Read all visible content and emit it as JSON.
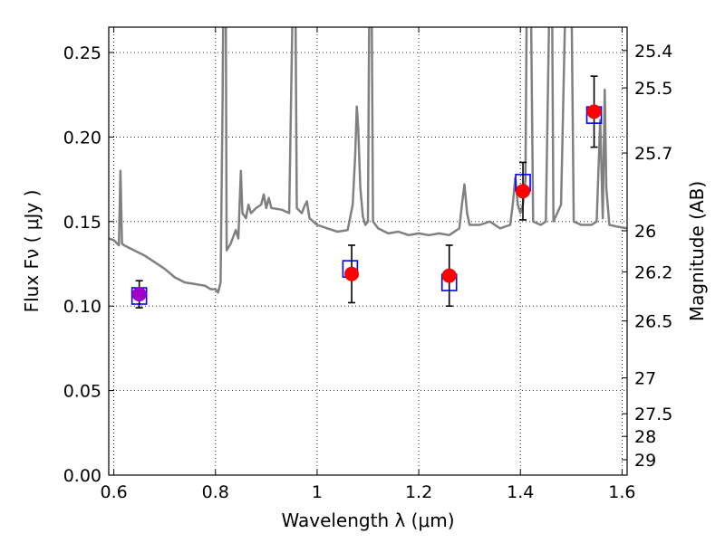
{
  "chart_data": {
    "type": "scatter",
    "title": "",
    "xlabel": "Wavelength  λ (μm)",
    "ylabel_left": "Flux  Fν  ( μJy )",
    "ylabel_right": "Magnitude (AB)",
    "xlim": [
      0.59,
      1.61
    ],
    "ylim": [
      0,
      0.265
    ],
    "grid": true,
    "x_ticks": [
      {
        "value": 0.6,
        "label": "0.6"
      },
      {
        "value": 0.8,
        "label": "0.8"
      },
      {
        "value": 1.0,
        "label": "1"
      },
      {
        "value": 1.2,
        "label": "1.2"
      },
      {
        "value": 1.4,
        "label": "1.4"
      },
      {
        "value": 1.6,
        "label": "1.6"
      }
    ],
    "y_ticks": [
      {
        "value": 0.0,
        "label": "0.00"
      },
      {
        "value": 0.05,
        "label": "0.05"
      },
      {
        "value": 0.1,
        "label": "0.10"
      },
      {
        "value": 0.15,
        "label": "0.15"
      },
      {
        "value": 0.2,
        "label": "0.20"
      },
      {
        "value": 0.25,
        "label": "0.25"
      }
    ],
    "mag_ticks": [
      {
        "mag": 25.4,
        "label": "25.4"
      },
      {
        "mag": 25.5,
        "label": "25.5"
      },
      {
        "mag": 25.7,
        "label": "25.7"
      },
      {
        "mag": 26.0,
        "label": "26"
      },
      {
        "mag": 26.2,
        "label": "26.2"
      },
      {
        "mag": 26.5,
        "label": "26.5"
      },
      {
        "mag": 27.0,
        "label": "27"
      },
      {
        "mag": 27.5,
        "label": "27.5"
      },
      {
        "mag": 28.0,
        "label": "28"
      },
      {
        "mag": 29.0,
        "label": "29"
      }
    ],
    "spectrum": {
      "color": "#808080",
      "points": [
        [
          0.59,
          0.14
        ],
        [
          0.6,
          0.139
        ],
        [
          0.61,
          0.136
        ],
        [
          0.613,
          0.18
        ],
        [
          0.616,
          0.137
        ],
        [
          0.62,
          0.136
        ],
        [
          0.64,
          0.133
        ],
        [
          0.66,
          0.13
        ],
        [
          0.68,
          0.126
        ],
        [
          0.7,
          0.122
        ],
        [
          0.72,
          0.117
        ],
        [
          0.74,
          0.114
        ],
        [
          0.76,
          0.113
        ],
        [
          0.78,
          0.112
        ],
        [
          0.79,
          0.11
        ],
        [
          0.8,
          0.11
        ],
        [
          0.805,
          0.108
        ],
        [
          0.81,
          0.114
        ],
        [
          0.814,
          0.22
        ],
        [
          0.816,
          0.3
        ],
        [
          0.82,
          0.3
        ],
        [
          0.822,
          0.133
        ],
        [
          0.83,
          0.137
        ],
        [
          0.84,
          0.145
        ],
        [
          0.845,
          0.14
        ],
        [
          0.85,
          0.18
        ],
        [
          0.853,
          0.155
        ],
        [
          0.86,
          0.152
        ],
        [
          0.865,
          0.16
        ],
        [
          0.87,
          0.155
        ],
        [
          0.88,
          0.158
        ],
        [
          0.89,
          0.16
        ],
        [
          0.895,
          0.166
        ],
        [
          0.9,
          0.158
        ],
        [
          0.905,
          0.164
        ],
        [
          0.91,
          0.158
        ],
        [
          0.93,
          0.157
        ],
        [
          0.945,
          0.155
        ],
        [
          0.953,
          0.3
        ],
        [
          0.957,
          0.3
        ],
        [
          0.96,
          0.158
        ],
        [
          0.97,
          0.155
        ],
        [
          0.975,
          0.159
        ],
        [
          0.98,
          0.162
        ],
        [
          0.985,
          0.152
        ],
        [
          1.0,
          0.148
        ],
        [
          1.02,
          0.146
        ],
        [
          1.04,
          0.144
        ],
        [
          1.06,
          0.145
        ],
        [
          1.07,
          0.16
        ],
        [
          1.075,
          0.19
        ],
        [
          1.078,
          0.218
        ],
        [
          1.081,
          0.205
        ],
        [
          1.085,
          0.17
        ],
        [
          1.09,
          0.153
        ],
        [
          1.095,
          0.148
        ],
        [
          1.1,
          0.15
        ],
        [
          1.103,
          0.3
        ],
        [
          1.107,
          0.3
        ],
        [
          1.11,
          0.15
        ],
        [
          1.12,
          0.146
        ],
        [
          1.14,
          0.143
        ],
        [
          1.16,
          0.144
        ],
        [
          1.18,
          0.142
        ],
        [
          1.2,
          0.143
        ],
        [
          1.22,
          0.142
        ],
        [
          1.24,
          0.143
        ],
        [
          1.26,
          0.142
        ],
        [
          1.28,
          0.146
        ],
        [
          1.285,
          0.16
        ],
        [
          1.29,
          0.172
        ],
        [
          1.295,
          0.155
        ],
        [
          1.3,
          0.148
        ],
        [
          1.32,
          0.148
        ],
        [
          1.34,
          0.15
        ],
        [
          1.36,
          0.146
        ],
        [
          1.38,
          0.148
        ],
        [
          1.385,
          0.16
        ],
        [
          1.39,
          0.176
        ],
        [
          1.395,
          0.16
        ],
        [
          1.4,
          0.155
        ],
        [
          1.405,
          0.16
        ],
        [
          1.41,
          0.175
        ],
        [
          1.413,
          0.3
        ],
        [
          1.42,
          0.3
        ],
        [
          1.425,
          0.15
        ],
        [
          1.44,
          0.148
        ],
        [
          1.45,
          0.15
        ],
        [
          1.458,
          0.3
        ],
        [
          1.462,
          0.3
        ],
        [
          1.465,
          0.15
        ],
        [
          1.48,
          0.16
        ],
        [
          1.49,
          0.3
        ],
        [
          1.5,
          0.3
        ],
        [
          1.505,
          0.15
        ],
        [
          1.52,
          0.148
        ],
        [
          1.54,
          0.148
        ],
        [
          1.55,
          0.15
        ],
        [
          1.557,
          0.21
        ],
        [
          1.562,
          0.152
        ],
        [
          1.566,
          0.228
        ],
        [
          1.569,
          0.17
        ],
        [
          1.575,
          0.148
        ],
        [
          1.59,
          0.147
        ],
        [
          1.61,
          0.146
        ]
      ]
    },
    "model_points": {
      "marker": "square",
      "color": "#0000ff",
      "points": [
        {
          "x": 0.65,
          "y": 0.106
        },
        {
          "x": 1.065,
          "y": 0.122
        },
        {
          "x": 1.26,
          "y": 0.114
        },
        {
          "x": 1.405,
          "y": 0.173
        },
        {
          "x": 1.545,
          "y": 0.213
        }
      ]
    },
    "observed": {
      "marker": "circle",
      "points": [
        {
          "x": 0.65,
          "y": 0.107,
          "err": 0.008,
          "color": "#a000c8"
        },
        {
          "x": 1.068,
          "y": 0.119,
          "err": 0.017,
          "color": "#ff0000"
        },
        {
          "x": 1.26,
          "y": 0.118,
          "err": 0.018,
          "color": "#ff0000"
        },
        {
          "x": 1.405,
          "y": 0.168,
          "err": 0.017,
          "color": "#ff0000"
        },
        {
          "x": 1.545,
          "y": 0.215,
          "err": 0.021,
          "color": "#ff0000"
        }
      ]
    }
  }
}
